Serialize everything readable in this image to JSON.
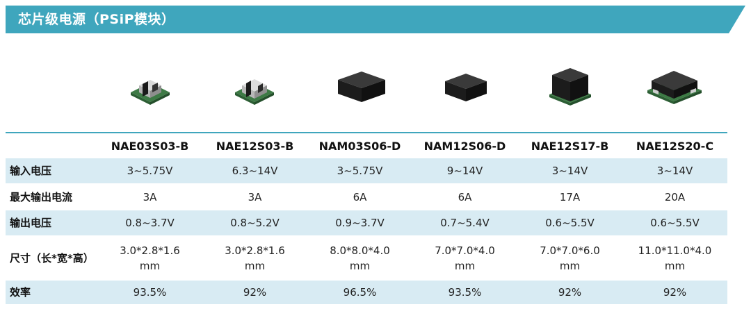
{
  "header": {
    "title": "芯片级电源（PSiP模块）"
  },
  "colors": {
    "banner": "#3fa6bd",
    "row_shade": "#d8ebf3"
  },
  "products": [
    {
      "image": "chip-small-green-board-icon"
    },
    {
      "image": "chip-small-green-board-icon"
    },
    {
      "image": "chip-black-square-icon"
    },
    {
      "image": "chip-black-square-icon"
    },
    {
      "image": "chip-black-cube-green-board-icon"
    },
    {
      "image": "chip-black-wide-green-board-icon"
    }
  ],
  "table": {
    "columns": [
      "",
      "NAE03S03-B",
      "NAE12S03-B",
      "NAM03S06-D",
      "NAM12S06-D",
      "NAE12S17-B",
      "NAE12S20-C"
    ],
    "rows": [
      {
        "label": "输入电压",
        "cells": [
          "3~5.75V",
          "6.3~14V",
          "3~5.75V",
          "9~14V",
          "3~14V",
          "3~14V"
        ]
      },
      {
        "label": "最大输出电流",
        "cells": [
          "3A",
          "3A",
          "6A",
          "6A",
          "17A",
          "20A"
        ]
      },
      {
        "label": "输出电压",
        "cells": [
          "0.8~3.7V",
          "0.8~5.2V",
          "0.9~3.7V",
          "0.7~5.4V",
          "0.6~5.5V",
          "0.6~5.5V"
        ]
      },
      {
        "label": "尺寸（长*宽*高）",
        "cells": [
          [
            "3.0*2.8*1.6",
            "mm"
          ],
          [
            "3.0*2.8*1.6",
            "mm"
          ],
          [
            "8.0*8.0*4.0",
            "mm"
          ],
          [
            "7.0*7.0*4.0",
            "mm"
          ],
          [
            "7.0*7.0*6.0",
            "mm"
          ],
          [
            "11.0*11.0*4.0",
            "mm"
          ]
        ]
      },
      {
        "label": "效率",
        "cells": [
          "93.5%",
          "92%",
          "96.5%",
          "93.5%",
          "92%",
          "92%"
        ]
      }
    ]
  }
}
